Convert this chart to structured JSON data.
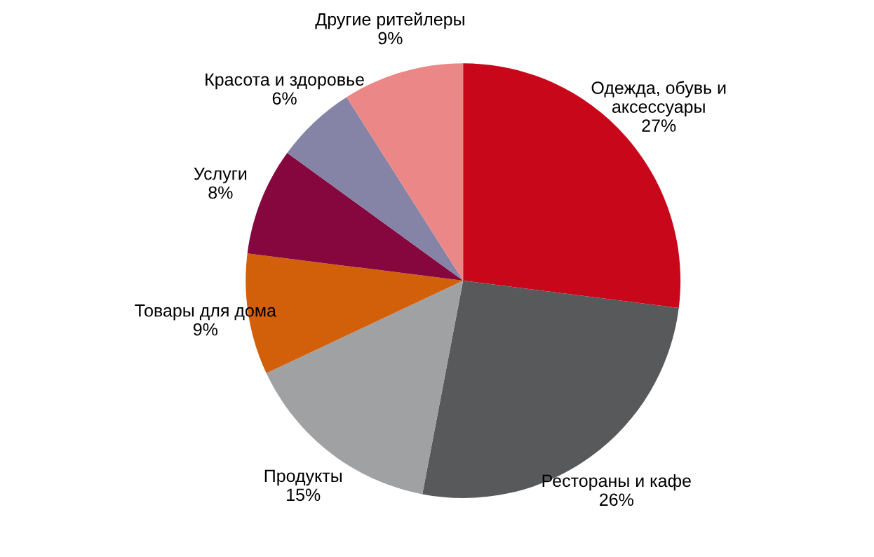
{
  "chart_data": {
    "type": "pie",
    "categories": [
      "Одежда, обувь и\nаксессуары",
      "Рестораны и кафе",
      "Продукты",
      "Товары для дома",
      "Услуги",
      "Красота и здоровье",
      "Другие ритейлеры"
    ],
    "values": [
      27,
      26,
      15,
      9,
      8,
      6,
      9
    ],
    "value_labels": [
      "27%",
      "26%",
      "15%",
      "9%",
      "8%",
      "6%",
      "9%"
    ],
    "colors": [
      "#c8081a",
      "#58595b",
      "#a0a1a3",
      "#d2600a",
      "#86063e",
      "#8584a6",
      "#ec8787"
    ],
    "legend": false
  }
}
